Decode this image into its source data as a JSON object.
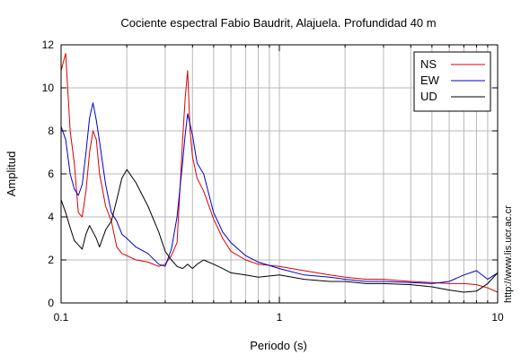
{
  "chart_data": {
    "type": "line",
    "title": "Cociente espectral Fabio Baudrit, Alajuela. Profundidad 40 m",
    "xlabel": "Periodo (s)",
    "ylabel": "Amplitud",
    "x_scale": "log",
    "xlim": [
      0.1,
      10
    ],
    "ylim": [
      0,
      12
    ],
    "x_ticks": [
      0.1,
      1,
      10
    ],
    "x_tick_labels": [
      "0.1",
      "1",
      "10"
    ],
    "y_ticks": [
      0,
      2,
      4,
      6,
      8,
      10,
      12
    ],
    "y_tick_labels": [
      "0",
      "2",
      "4",
      "6",
      "8",
      "10",
      "12"
    ],
    "grid": true,
    "legend_position": "top-right",
    "side_text": "http://www.lis.ucr.ac.cr",
    "series": [
      {
        "name": "NS",
        "color": "#dd0000",
        "x": [
          0.1,
          0.105,
          0.11,
          0.115,
          0.12,
          0.125,
          0.13,
          0.135,
          0.14,
          0.145,
          0.15,
          0.16,
          0.17,
          0.18,
          0.19,
          0.2,
          0.22,
          0.25,
          0.28,
          0.3,
          0.32,
          0.34,
          0.36,
          0.37,
          0.38,
          0.39,
          0.4,
          0.42,
          0.45,
          0.5,
          0.55,
          0.6,
          0.7,
          0.8,
          1.0,
          1.3,
          1.7,
          2.0,
          2.5,
          3.0,
          4.0,
          5.0,
          6.0,
          7.0,
          8.0,
          9.0,
          10.0
        ],
        "y": [
          10.8,
          11.6,
          8.0,
          6.5,
          4.2,
          4.0,
          5.2,
          7.0,
          8.0,
          7.6,
          6.0,
          4.5,
          3.8,
          2.6,
          2.3,
          2.2,
          2.0,
          1.9,
          1.7,
          1.8,
          2.2,
          2.8,
          7.5,
          9.5,
          10.8,
          8.0,
          6.8,
          5.8,
          5.2,
          3.9,
          3.0,
          2.4,
          2.0,
          1.8,
          1.7,
          1.5,
          1.3,
          1.2,
          1.1,
          1.1,
          1.0,
          0.95,
          0.9,
          0.9,
          0.85,
          0.7,
          0.5
        ]
      },
      {
        "name": "EW",
        "color": "#0000cc",
        "x": [
          0.1,
          0.105,
          0.11,
          0.115,
          0.12,
          0.125,
          0.13,
          0.135,
          0.14,
          0.145,
          0.15,
          0.16,
          0.17,
          0.18,
          0.19,
          0.2,
          0.22,
          0.25,
          0.28,
          0.3,
          0.32,
          0.34,
          0.36,
          0.37,
          0.38,
          0.39,
          0.4,
          0.42,
          0.45,
          0.5,
          0.55,
          0.6,
          0.7,
          0.8,
          1.0,
          1.3,
          1.7,
          2.0,
          2.5,
          3.0,
          4.0,
          5.0,
          6.0,
          7.0,
          8.0,
          9.0,
          10.0
        ],
        "y": [
          8.2,
          7.6,
          6.0,
          5.3,
          5.0,
          5.5,
          7.0,
          8.6,
          9.3,
          8.5,
          7.5,
          5.5,
          4.2,
          3.8,
          3.2,
          3.0,
          2.6,
          2.3,
          1.8,
          1.7,
          2.5,
          4.0,
          6.5,
          7.8,
          8.8,
          8.3,
          7.8,
          6.5,
          6.0,
          4.2,
          3.3,
          2.8,
          2.2,
          1.9,
          1.6,
          1.3,
          1.2,
          1.1,
          1.0,
          1.0,
          0.95,
          0.9,
          1.0,
          1.3,
          1.5,
          1.1,
          1.4
        ]
      },
      {
        "name": "UD",
        "color": "#000000",
        "x": [
          0.1,
          0.105,
          0.11,
          0.115,
          0.12,
          0.125,
          0.13,
          0.135,
          0.14,
          0.145,
          0.15,
          0.16,
          0.17,
          0.18,
          0.19,
          0.2,
          0.22,
          0.25,
          0.28,
          0.3,
          0.32,
          0.34,
          0.36,
          0.37,
          0.38,
          0.39,
          0.4,
          0.42,
          0.45,
          0.5,
          0.55,
          0.6,
          0.7,
          0.8,
          1.0,
          1.3,
          1.7,
          2.0,
          2.5,
          3.0,
          4.0,
          5.0,
          6.0,
          7.0,
          8.0,
          9.0,
          10.0
        ],
        "y": [
          4.8,
          4.2,
          3.5,
          2.9,
          2.7,
          2.5,
          3.2,
          3.6,
          3.3,
          3.0,
          2.6,
          3.4,
          3.8,
          4.8,
          5.8,
          6.2,
          5.6,
          4.5,
          3.3,
          2.4,
          2.0,
          1.7,
          1.6,
          1.7,
          1.8,
          1.7,
          1.6,
          1.8,
          2.0,
          1.8,
          1.6,
          1.4,
          1.3,
          1.2,
          1.3,
          1.1,
          1.0,
          1.0,
          0.9,
          0.9,
          0.85,
          0.75,
          0.6,
          0.5,
          0.55,
          0.9,
          1.4
        ]
      }
    ]
  }
}
